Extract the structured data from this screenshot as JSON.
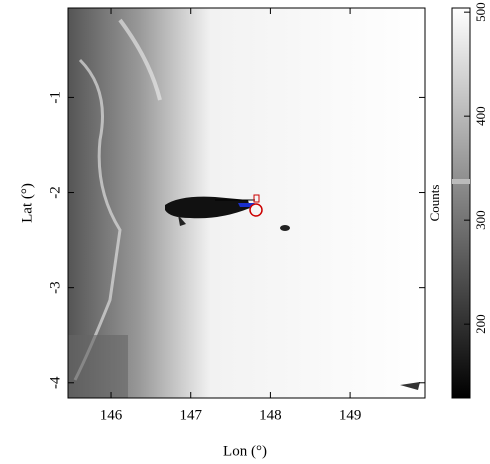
{
  "chart_data": {
    "type": "image",
    "xlabel": "Lon (°)",
    "ylabel": "Lat (°)",
    "xlim": [
      145.46,
      149.94
    ],
    "xticks": [
      146,
      147,
      148,
      149
    ],
    "ylim": [
      -4.16,
      -0.06
    ],
    "yticks": [
      -4,
      -3,
      -2,
      -1
    ],
    "colorbar": {
      "label": "Counts",
      "lim": [
        129,
        504
      ],
      "ticks": [
        200,
        300,
        400,
        500
      ]
    }
  }
}
